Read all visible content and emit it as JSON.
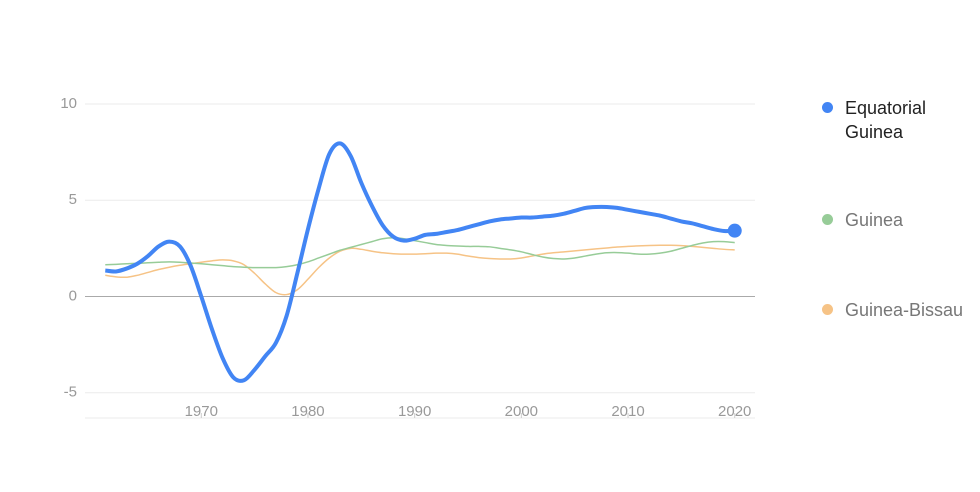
{
  "chart_data": {
    "type": "line",
    "x": [
      1961,
      1962,
      1963,
      1964,
      1965,
      1966,
      1967,
      1968,
      1969,
      1970,
      1971,
      1972,
      1973,
      1974,
      1975,
      1976,
      1977,
      1978,
      1979,
      1980,
      1981,
      1982,
      1983,
      1984,
      1985,
      1986,
      1987,
      1988,
      1989,
      1990,
      1991,
      1992,
      1993,
      1994,
      1995,
      1996,
      1997,
      1998,
      1999,
      2000,
      2001,
      2002,
      2003,
      2004,
      2005,
      2006,
      2007,
      2008,
      2009,
      2010,
      2011,
      2012,
      2013,
      2014,
      2015,
      2016,
      2017,
      2018,
      2019,
      2020
    ],
    "series": [
      {
        "name": "Equatorial Guinea",
        "color": "#4285f4",
        "values": [
          1.35,
          1.3,
          1.45,
          1.7,
          2.1,
          2.6,
          2.85,
          2.6,
          1.6,
          0,
          -1.7,
          -3.2,
          -4.2,
          -4.35,
          -3.8,
          -3.1,
          -2.4,
          -1.0,
          1.2,
          3.5,
          5.6,
          7.4,
          7.95,
          7.3,
          5.9,
          4.7,
          3.7,
          3.1,
          2.9,
          3.0,
          3.2,
          3.25,
          3.35,
          3.45,
          3.6,
          3.75,
          3.9,
          4.0,
          4.05,
          4.1,
          4.1,
          4.15,
          4.2,
          4.3,
          4.45,
          4.6,
          4.65,
          4.65,
          4.6,
          4.5,
          4.4,
          4.3,
          4.2,
          4.05,
          3.9,
          3.8,
          3.65,
          3.5,
          3.4,
          3.42
        ]
      },
      {
        "name": "Guinea",
        "color": "#97cc98",
        "values": [
          1.65,
          1.67,
          1.7,
          1.72,
          1.75,
          1.78,
          1.8,
          1.78,
          1.74,
          1.7,
          1.65,
          1.6,
          1.55,
          1.52,
          1.5,
          1.5,
          1.5,
          1.55,
          1.65,
          1.8,
          2.0,
          2.2,
          2.4,
          2.55,
          2.7,
          2.85,
          3.0,
          3.05,
          3.0,
          2.9,
          2.8,
          2.7,
          2.65,
          2.62,
          2.6,
          2.6,
          2.58,
          2.5,
          2.42,
          2.32,
          2.18,
          2.05,
          1.97,
          1.95,
          2.0,
          2.1,
          2.2,
          2.27,
          2.28,
          2.25,
          2.2,
          2.2,
          2.25,
          2.35,
          2.5,
          2.65,
          2.78,
          2.85,
          2.85,
          2.8
        ]
      },
      {
        "name": "Guinea-Bissau",
        "color": "#f6c386",
        "values": [
          1.1,
          1.02,
          1.0,
          1.1,
          1.25,
          1.4,
          1.52,
          1.62,
          1.7,
          1.78,
          1.85,
          1.9,
          1.85,
          1.65,
          1.2,
          0.65,
          0.2,
          0.1,
          0.35,
          0.9,
          1.5,
          2.0,
          2.35,
          2.5,
          2.45,
          2.35,
          2.27,
          2.22,
          2.2,
          2.2,
          2.22,
          2.25,
          2.25,
          2.2,
          2.1,
          2.02,
          1.97,
          1.95,
          1.95,
          2.0,
          2.1,
          2.2,
          2.27,
          2.32,
          2.37,
          2.42,
          2.47,
          2.52,
          2.57,
          2.6,
          2.63,
          2.65,
          2.66,
          2.66,
          2.64,
          2.6,
          2.55,
          2.5,
          2.45,
          2.42
        ]
      }
    ],
    "xlim": [
      1959.1,
      2021.9
    ],
    "xticks": [
      1970,
      1980,
      1990,
      2000,
      2010,
      2020
    ],
    "ylim": [
      -6,
      11
    ],
    "yticks": [
      -5,
      0,
      5,
      10
    ],
    "grid": true,
    "legend": "right"
  }
}
